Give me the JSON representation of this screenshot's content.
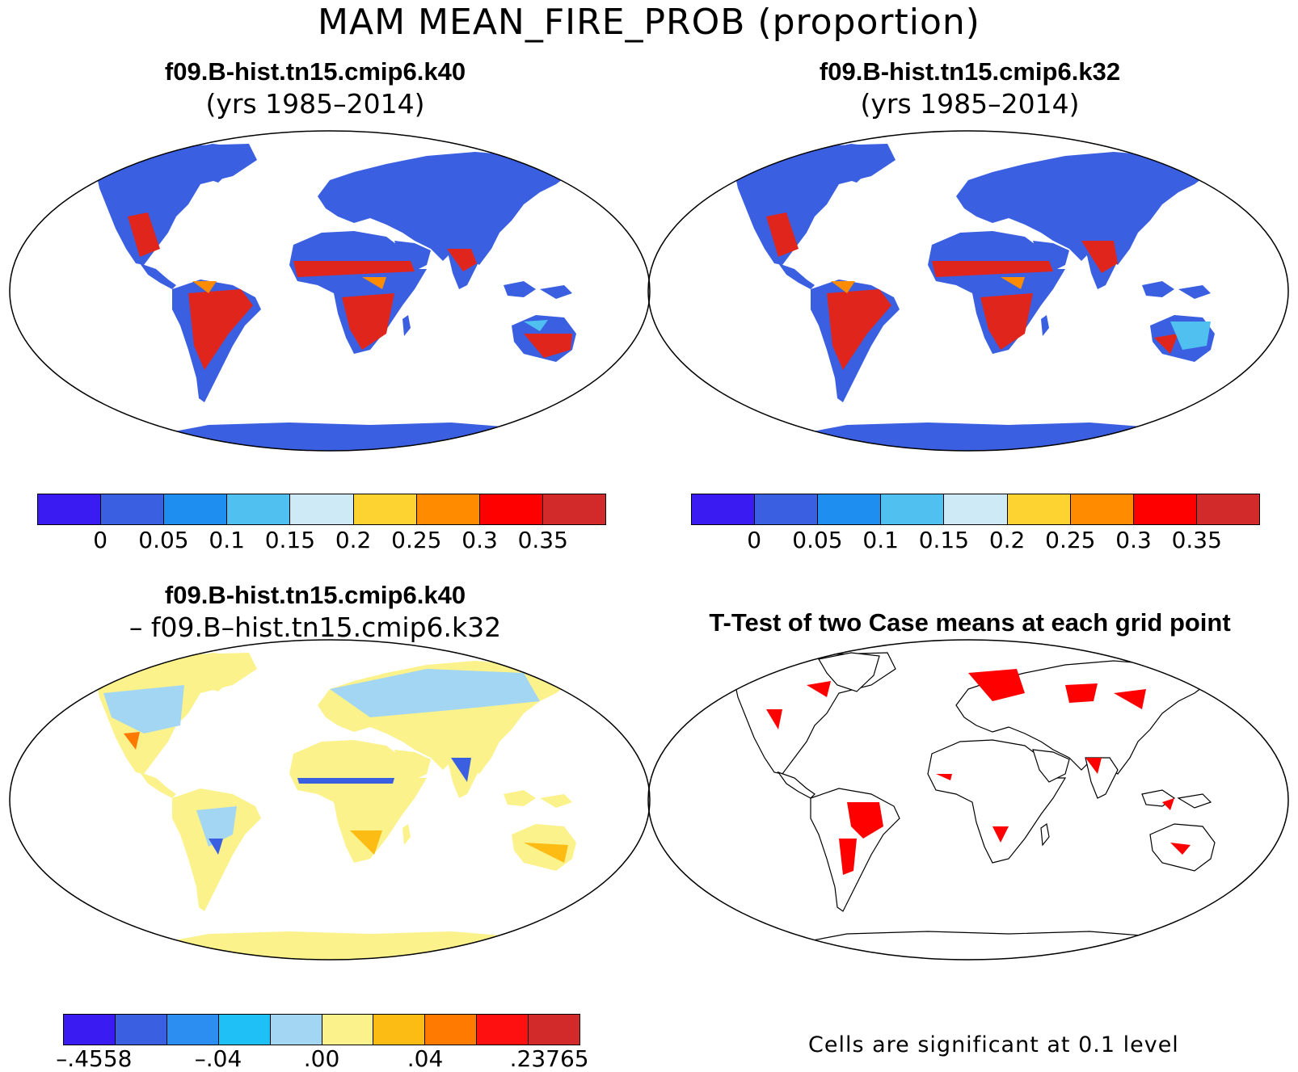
{
  "title": "MAM MEAN_FIRE_PROB (proportion)",
  "panels": {
    "top_left": {
      "case": "f09.B-hist.tn15.cmip6.k40",
      "years": "(yrs 1985–2014)"
    },
    "top_right": {
      "case": "f09.B-hist.tn15.cmip6.k32",
      "years": "(yrs 1985–2014)"
    },
    "bottom_left": {
      "case": "f09.B-hist.tn15.cmip6.k40",
      "minus_case": "– f09.B–hist.tn15.cmip6.k32"
    },
    "bottom_right": {
      "title": "T-Test of two Case means at each grid point",
      "note": "Cells are significant at 0.1 level"
    }
  },
  "colorbars": {
    "mean": {
      "colors": [
        "#3a1cf2",
        "#3a5fe0",
        "#1e8ff0",
        "#4fc0f0",
        "#cfeaf7",
        "#fcd330",
        "#ff8c00",
        "#ff0000",
        "#d22a2a"
      ],
      "tick_labels": [
        "0",
        "0.05",
        "0.1",
        "0.15",
        "0.2",
        "0.25",
        "0.3",
        "0.35"
      ]
    },
    "diff": {
      "colors": [
        "#3a1cf2",
        "#3a5fe0",
        "#2b8ef0",
        "#1ec0f5",
        "#a3d6f2",
        "#fbf28c",
        "#fcbc14",
        "#ff7a00",
        "#ff1010",
        "#d22a2a"
      ],
      "tick_labels": [
        "–.4558",
        "–.04",
        ".00",
        ".04",
        ".23765"
      ]
    }
  },
  "map_fills": {
    "mean_land": "#3a5fe0",
    "mean_hot": "#e0261c",
    "mean_warm": "#ff8c00",
    "mean_light": "#4fc0f0",
    "diff_land": "#fbf28c",
    "diff_blue": "#a3d6f2",
    "diff_dark": "#3a5fe0",
    "diff_warm": "#fcbc14",
    "ttest_sig": "#ff0000"
  }
}
